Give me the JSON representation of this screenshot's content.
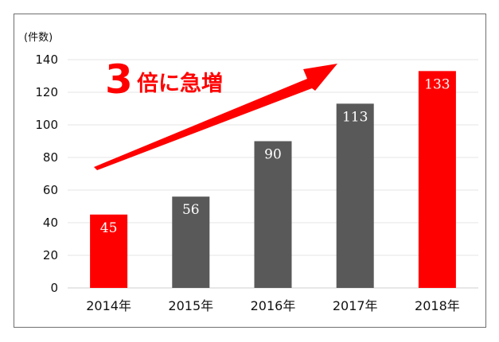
{
  "chart_data": {
    "type": "bar",
    "categories": [
      "2014年",
      "2015年",
      "2016年",
      "2017年",
      "2018年"
    ],
    "values": [
      45,
      56,
      90,
      113,
      133
    ],
    "data_labels": [
      "45",
      "56",
      "90",
      "113",
      "133"
    ],
    "ylabel": "(件数)",
    "ylim": [
      0,
      140
    ],
    "yticks": [
      0,
      20,
      40,
      60,
      80,
      100,
      120,
      140
    ],
    "grid": true,
    "legend": "none",
    "bar_colors": [
      "#ff0000",
      "#595959",
      "#595959",
      "#595959",
      "#ff0000"
    ],
    "annotation": {
      "number": "3",
      "text": "倍に急増",
      "color": "#ff0000",
      "arrow": "up-right trend arrow"
    }
  }
}
